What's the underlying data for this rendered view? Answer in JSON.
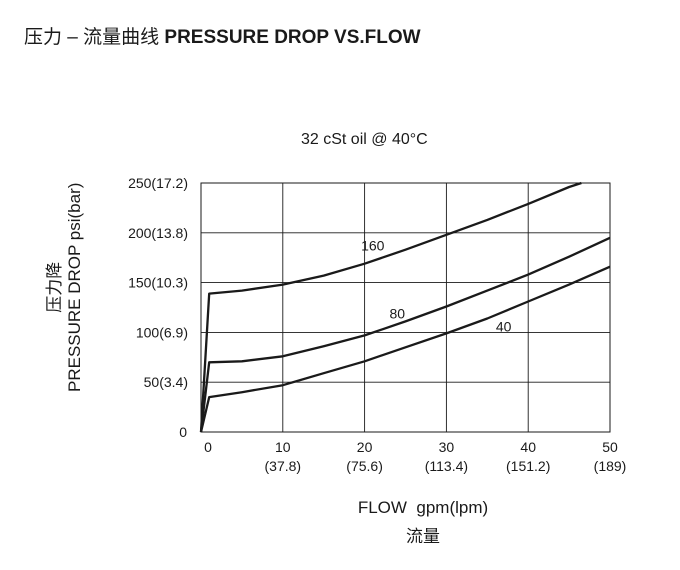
{
  "header": {
    "title_zh": "压力 – 流量曲线",
    "title_en": "PRESSURE DROP VS.FLOW"
  },
  "chart_data": {
    "type": "line",
    "subtitle": "32 cSt oil @ 40°C",
    "ylabel_zh": "压力降",
    "ylabel": "PRESSURE DROP psi(bar)",
    "xlabel": "FLOW  gpm(lpm)",
    "xlabel_zh": "流量",
    "xlim": [
      0,
      50
    ],
    "ylim": [
      0,
      250
    ],
    "grid": true,
    "x_ticks": [
      {
        "value": 0,
        "label": "0",
        "sub": ""
      },
      {
        "value": 10,
        "label": "10",
        "sub": "(37.8)"
      },
      {
        "value": 20,
        "label": "20",
        "sub": "(75.6)"
      },
      {
        "value": 30,
        "label": "30",
        "sub": "(113.4)"
      },
      {
        "value": 40,
        "label": "40",
        "sub": "(151.2)"
      },
      {
        "value": 50,
        "label": "50",
        "sub": "(189)"
      }
    ],
    "y_ticks": [
      {
        "value": 0,
        "label": "0"
      },
      {
        "value": 50,
        "label": "50(3.4)"
      },
      {
        "value": 100,
        "label": "100(6.9)"
      },
      {
        "value": 150,
        "label": "150(10.3)"
      },
      {
        "value": 200,
        "label": "200(13.8)"
      },
      {
        "value": 250,
        "label": "250(17.2)"
      }
    ],
    "series": [
      {
        "name": "160",
        "label_pos": {
          "x": 21,
          "y": 182
        },
        "x": [
          0,
          1,
          5,
          10,
          15,
          20,
          25,
          30,
          35,
          40,
          45,
          46.5
        ],
        "y": [
          0,
          139,
          142,
          148,
          157,
          169,
          183,
          198,
          213,
          229,
          246,
          250
        ]
      },
      {
        "name": "80",
        "label_pos": {
          "x": 24,
          "y": 114
        },
        "x": [
          0,
          1,
          5,
          10,
          15,
          20,
          25,
          30,
          35,
          40,
          45,
          50
        ],
        "y": [
          0,
          70,
          71,
          76,
          86,
          97,
          111,
          126,
          142,
          158,
          176,
          195
        ]
      },
      {
        "name": "40",
        "label_pos": {
          "x": 37,
          "y": 101
        },
        "x": [
          0,
          1,
          5,
          10,
          15,
          20,
          25,
          30,
          35,
          40,
          45,
          50
        ],
        "y": [
          0,
          35,
          40,
          47,
          59,
          71,
          85,
          99,
          114,
          131,
          148,
          166
        ]
      }
    ]
  }
}
